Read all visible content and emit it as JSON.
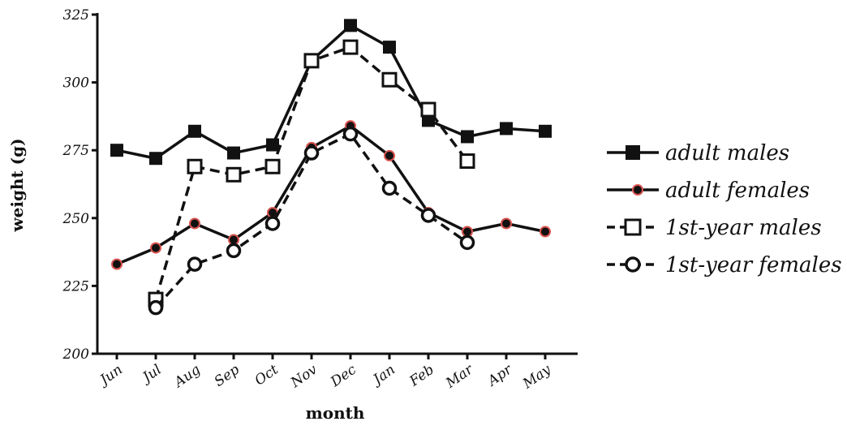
{
  "chart_data": {
    "type": "line",
    "xlabel": "month",
    "ylabel": "weight (g)",
    "ylim": [
      200,
      325
    ],
    "yticks": [
      200,
      225,
      250,
      275,
      300,
      325
    ],
    "categories": [
      "Jun",
      "Jul",
      "Aug",
      "Sep",
      "Oct",
      "Nov",
      "Dec",
      "Jan",
      "Feb",
      "Mar",
      "Apr",
      "May"
    ],
    "grid": false,
    "legend_position": "right",
    "series": [
      {
        "name": "adult males",
        "marker": "filled-square",
        "line": "solid",
        "values": [
          275,
          272,
          282,
          274,
          277,
          308,
          321,
          313,
          286,
          280,
          283,
          282
        ]
      },
      {
        "name": "adult females",
        "marker": "red-edged-dot",
        "line": "solid",
        "values": [
          233,
          239,
          248,
          242,
          252,
          276,
          284,
          273,
          252,
          245,
          248,
          245
        ]
      },
      {
        "name": "1st-year males",
        "marker": "open-square",
        "line": "dashed",
        "values": [
          null,
          220,
          269,
          266,
          269,
          308,
          313,
          301,
          290,
          271,
          null,
          null
        ]
      },
      {
        "name": "1st-year females",
        "marker": "open-circle",
        "line": "dashed",
        "values": [
          null,
          217,
          233,
          238,
          248,
          274,
          281,
          261,
          251,
          241,
          null,
          null
        ]
      }
    ],
    "colors": {
      "line": "#111111",
      "female_marker_edge": "#d9534f"
    }
  }
}
